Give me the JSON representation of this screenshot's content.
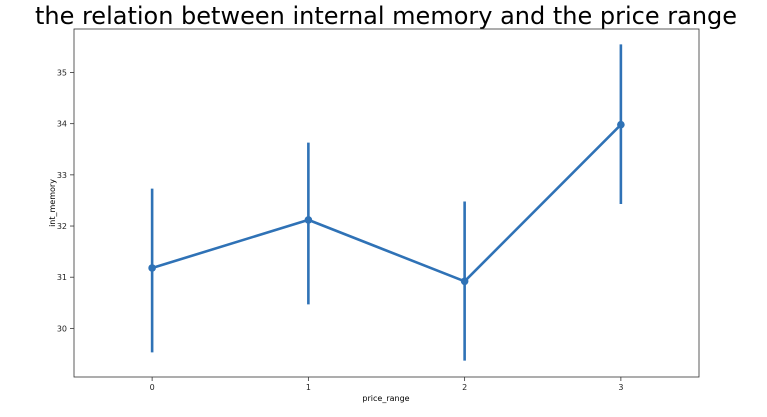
{
  "chart_data": {
    "type": "line",
    "title": "the relation between internal memory and the price range",
    "xlabel": "price_range",
    "ylabel": "int_memory",
    "categories": [
      "0",
      "1",
      "2",
      "3"
    ],
    "series": [
      {
        "values": [
          31.18,
          32.12,
          30.92,
          33.98
        ],
        "ci_low": [
          29.53,
          30.47,
          29.37,
          32.43
        ],
        "ci_high": [
          32.73,
          33.63,
          32.48,
          35.55
        ],
        "color": "#2f72b6"
      }
    ],
    "xlim": [
      -0.5,
      3.5
    ],
    "ylim": [
      29.05,
      35.85
    ],
    "yticks": [
      "30",
      "31",
      "32",
      "33",
      "34",
      "35"
    ],
    "grid": false,
    "legend": "none"
  }
}
